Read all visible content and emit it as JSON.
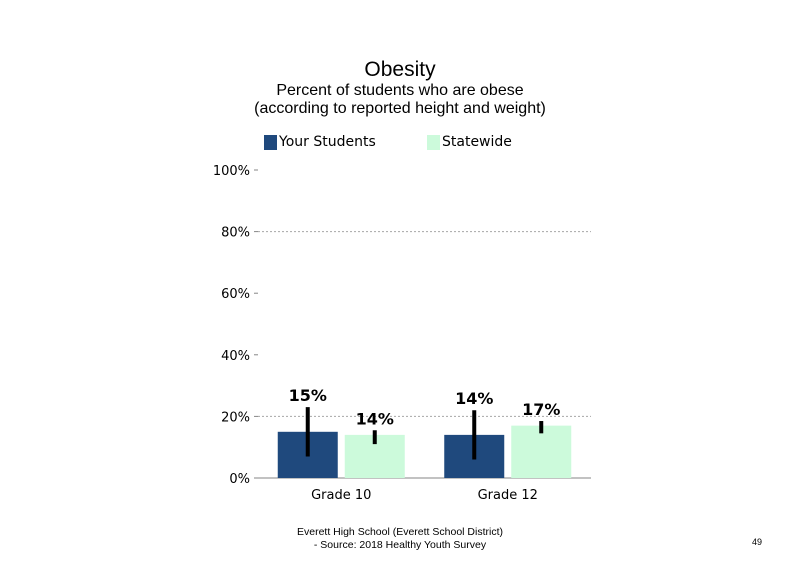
{
  "chart_data": {
    "type": "bar",
    "title": "Obesity",
    "subtitle": [
      "Percent of students who are obese",
      "(according to reported height and weight)"
    ],
    "categories": [
      "Grade 10",
      "Grade 12"
    ],
    "series": [
      {
        "name": "Your Students",
        "color": "#1f497d",
        "values": [
          15,
          14
        ],
        "labels": [
          "15%",
          "14%"
        ],
        "error_low": [
          7,
          6
        ],
        "error_high": [
          23,
          22
        ]
      },
      {
        "name": "Statewide",
        "color": "#ccfadb",
        "values": [
          14,
          17
        ],
        "labels": [
          "14%",
          "17%"
        ],
        "error_low": [
          11,
          14.5
        ],
        "error_high": [
          15.5,
          18.5
        ]
      }
    ],
    "y_ticks": [
      "0%",
      "20%",
      "40%",
      "60%",
      "80%",
      "100%"
    ],
    "ylim": [
      0,
      100
    ],
    "grid": "dotted at 20% and 80%",
    "legend": "top"
  },
  "footer": {
    "line1": "Everett High  School (Everett School District)",
    "line2": "- Source: 2018 Healthy  Youth Survey",
    "page_number": "49"
  }
}
